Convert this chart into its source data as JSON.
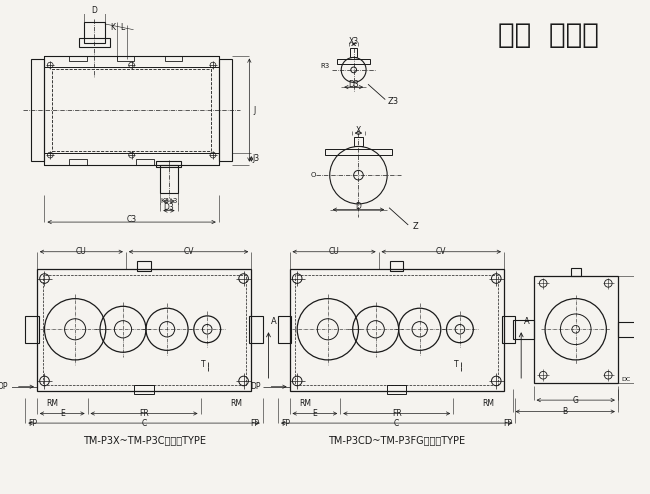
{
  "title": "三段  平行轴",
  "title_fontsize": 20,
  "label1": "TM-P3X~TM-P3C适用此TYPE",
  "label2": "TM-P3CD~TM-P3FG适用此TYPE",
  "bg_color": "#f5f3ef",
  "line_color": "#1a1a1a",
  "dim_color": "#1a1a1a",
  "font_size": 6.0
}
